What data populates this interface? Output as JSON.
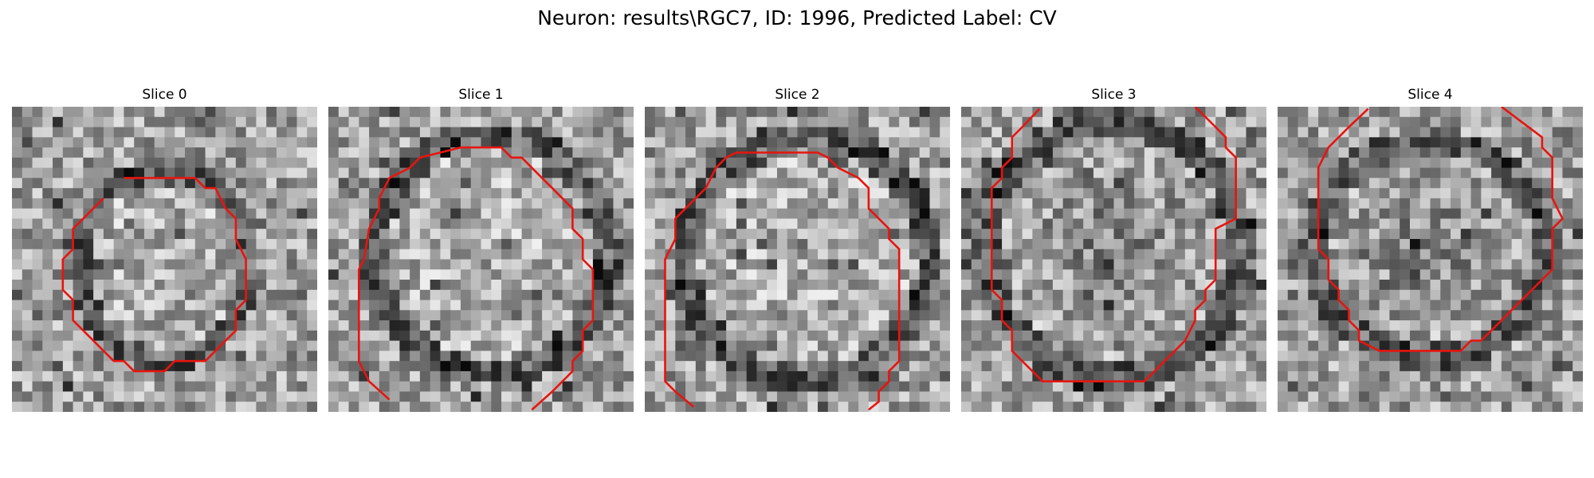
{
  "figure": {
    "title": "Neuron: results\\RGC7, ID: 1996, Predicted Label: CV"
  },
  "panels": [
    {
      "title": "Slice 0"
    },
    {
      "title": "Slice 1"
    },
    {
      "title": "Slice 2"
    },
    {
      "title": "Slice 3"
    },
    {
      "title": "Slice 4"
    }
  ],
  "contour_color": "#e8140f"
}
